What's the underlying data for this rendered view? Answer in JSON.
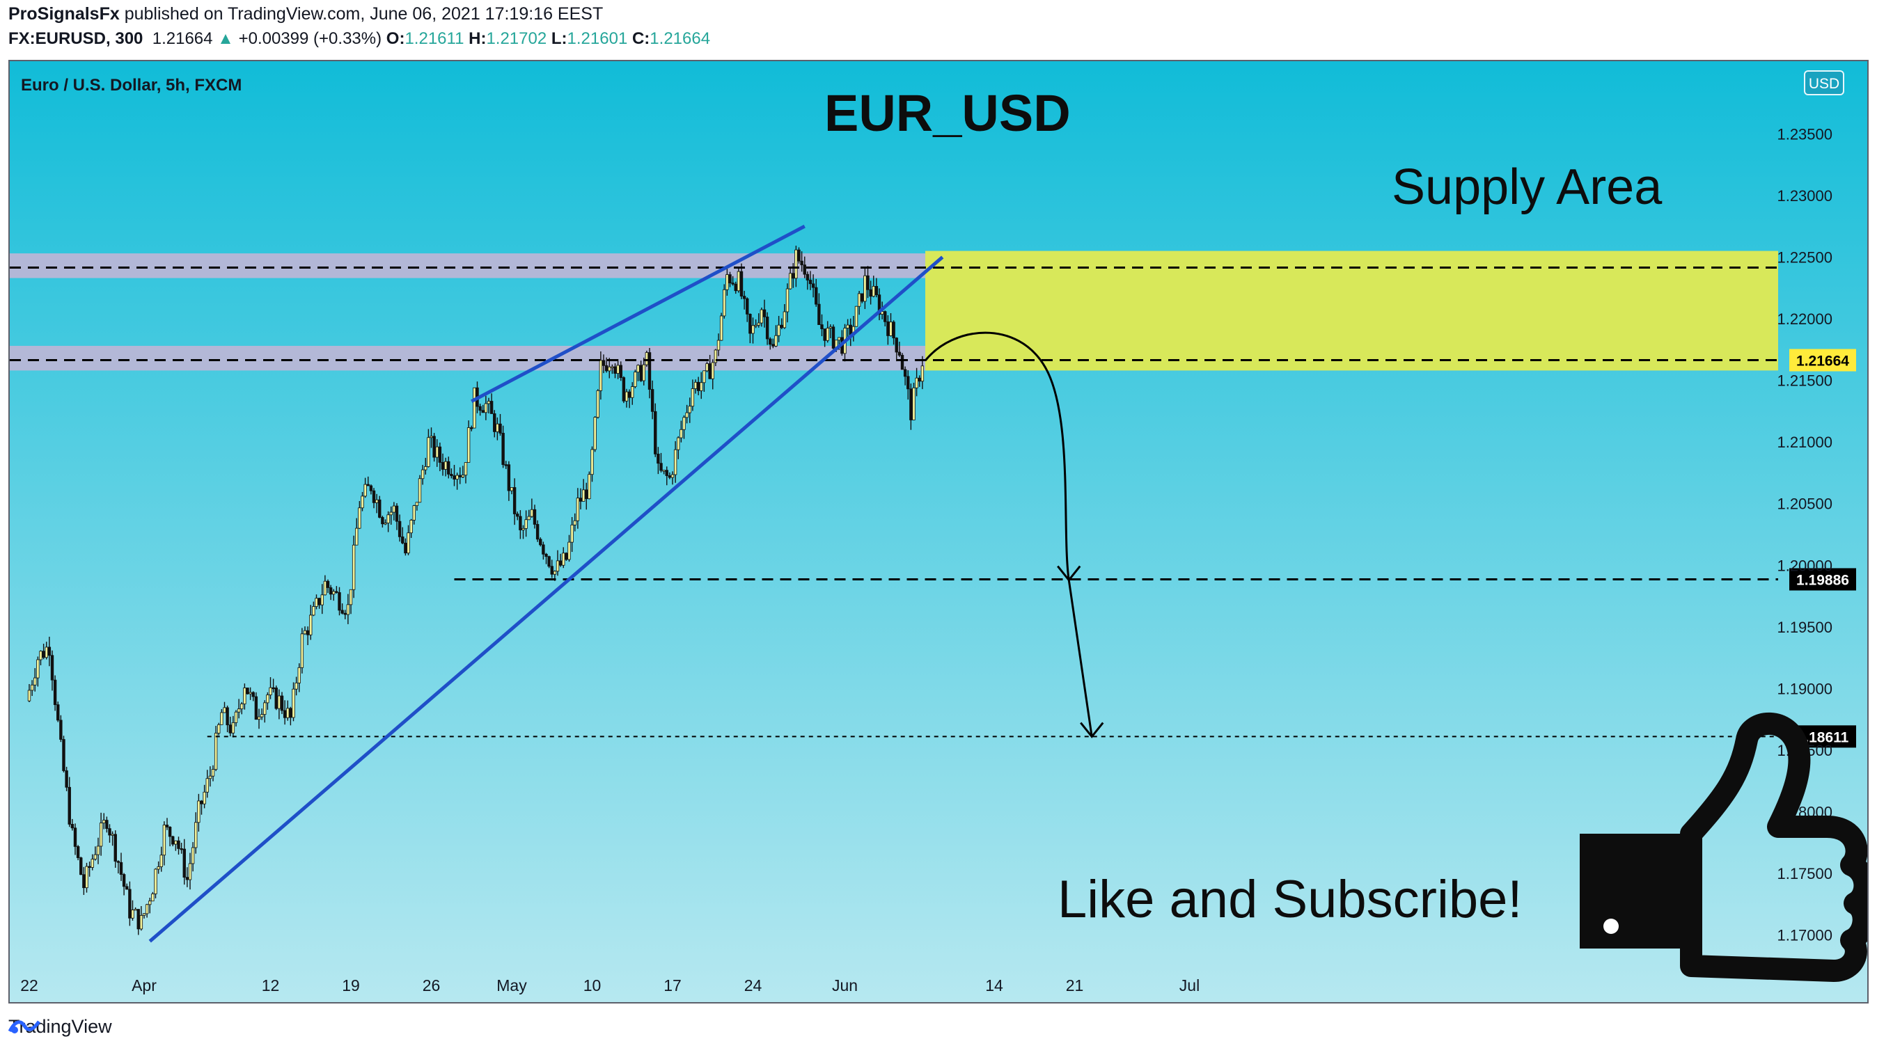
{
  "header": {
    "publisher": "ProSignalsFx",
    "published_text": " published on TradingView.com, June 06, 2021 17:19:16 EEST",
    "symbol": "FX:EURUSD, 300",
    "last": "1.21664",
    "change": "+0.00399 (+0.33%)",
    "o_label": "O:",
    "o": "1.21611",
    "h_label": "H:",
    "h": "1.21702",
    "l_label": "L:",
    "l": "1.21601",
    "c_label": "C:",
    "c": "1.21664"
  },
  "chart_legend": "Euro / U.S. Dollar, 5h, FXCM",
  "currency_badge": "USD",
  "footer": {
    "brand": "TradingView"
  },
  "colors": {
    "bg_top": "#11bcd8",
    "bg_bottom": "#b6e8f0",
    "band": "#b9b6d6",
    "supply": "#d8e85a",
    "trendline": "#1f4fc8",
    "candle_up": "#f2f29a",
    "candle_down": "#111111"
  },
  "chart_data": {
    "type": "candlestick",
    "title": "EUR_USD",
    "y_axis": {
      "min": 1.1675,
      "max": 1.2375,
      "ticks": [
        "1.23500",
        "1.23000",
        "1.22500",
        "1.22000",
        "1.21500",
        "1.21000",
        "1.20500",
        "1.20000",
        "1.19500",
        "1.19000",
        "1.18500",
        "1.18000",
        "1.17500",
        "1.17000"
      ]
    },
    "x_axis": {
      "ticks": [
        {
          "label": "22",
          "day": 0
        },
        {
          "label": "Apr",
          "day": 10
        },
        {
          "label": "12",
          "day": 21
        },
        {
          "label": "19",
          "day": 28
        },
        {
          "label": "26",
          "day": 35
        },
        {
          "label": "May",
          "day": 42
        },
        {
          "label": "10",
          "day": 49
        },
        {
          "label": "17",
          "day": 56
        },
        {
          "label": "24",
          "day": 63
        },
        {
          "label": "Jun",
          "day": 71
        },
        {
          "label": "14",
          "day": 84
        },
        {
          "label": "21",
          "day": 91
        },
        {
          "label": "Jul",
          "day": 101
        }
      ]
    },
    "price_path": [
      [
        0,
        1.189
      ],
      [
        1,
        1.1925
      ],
      [
        2,
        1.1935
      ],
      [
        3,
        1.185
      ],
      [
        4,
        1.178
      ],
      [
        5,
        1.174
      ],
      [
        6,
        1.177
      ],
      [
        7,
        1.1795
      ],
      [
        8,
        1.176
      ],
      [
        9,
        1.172
      ],
      [
        10,
        1.171
      ],
      [
        11,
        1.174
      ],
      [
        12,
        1.1785
      ],
      [
        13,
        1.178
      ],
      [
        14,
        1.1745
      ],
      [
        15,
        1.18
      ],
      [
        16,
        1.183
      ],
      [
        17,
        1.188
      ],
      [
        18,
        1.1865
      ],
      [
        19,
        1.1905
      ],
      [
        20,
        1.188
      ],
      [
        21,
        1.1895
      ],
      [
        22,
        1.189
      ],
      [
        23,
        1.1875
      ],
      [
        24,
        1.194
      ],
      [
        25,
        1.196
      ],
      [
        26,
        1.1985
      ],
      [
        27,
        1.1975
      ],
      [
        28,
        1.1965
      ],
      [
        29,
        1.205
      ],
      [
        30,
        1.2065
      ],
      [
        31,
        1.204
      ],
      [
        32,
        1.2045
      ],
      [
        33,
        1.201
      ],
      [
        34,
        1.2055
      ],
      [
        35,
        1.21
      ],
      [
        36,
        1.2085
      ],
      [
        37,
        1.208
      ],
      [
        38,
        1.2075
      ],
      [
        39,
        1.2135
      ],
      [
        40,
        1.213
      ],
      [
        41,
        1.211
      ],
      [
        42,
        1.2065
      ],
      [
        43,
        1.2025
      ],
      [
        44,
        1.204
      ],
      [
        45,
        1.2015
      ],
      [
        46,
        1.1995
      ],
      [
        47,
        1.2005
      ],
      [
        48,
        1.205
      ],
      [
        49,
        1.2065
      ],
      [
        50,
        1.216
      ],
      [
        51,
        1.217
      ],
      [
        52,
        1.214
      ],
      [
        53,
        1.215
      ],
      [
        54,
        1.2165
      ],
      [
        55,
        1.2075
      ],
      [
        56,
        1.207
      ],
      [
        57,
        1.211
      ],
      [
        58,
        1.2145
      ],
      [
        59,
        1.215
      ],
      [
        60,
        1.217
      ],
      [
        61,
        1.2235
      ],
      [
        62,
        1.223
      ],
      [
        63,
        1.2185
      ],
      [
        64,
        1.221
      ],
      [
        65,
        1.2175
      ],
      [
        66,
        1.221
      ],
      [
        67,
        1.225
      ],
      [
        68,
        1.224
      ],
      [
        69,
        1.2195
      ],
      [
        70,
        1.2185
      ],
      [
        71,
        1.218
      ],
      [
        72,
        1.2195
      ],
      [
        73,
        1.223
      ],
      [
        74,
        1.2215
      ],
      [
        75,
        1.2195
      ],
      [
        76,
        1.2175
      ],
      [
        77,
        1.2125
      ],
      [
        78,
        1.2166
      ]
    ],
    "horizontal_levels": [
      {
        "price": 1.22415,
        "style": "dashed"
      },
      {
        "price": 1.21664,
        "style": "dashed",
        "label": "1.21664",
        "label_bg": "#ffeb3b"
      },
      {
        "price": 1.19886,
        "style": "dashed",
        "label": "1.19886",
        "label_bg": "#000000"
      },
      {
        "price": 1.18611,
        "style": "dotted",
        "label": "1.18611",
        "label_bg": "#000000"
      }
    ],
    "zones": [
      {
        "name": "resistance-band",
        "from": 1.2233,
        "to": 1.2253
      },
      {
        "name": "support-band",
        "from": 1.2158,
        "to": 1.2178
      }
    ],
    "supply_area": {
      "label": "Supply Area",
      "day_from": 78,
      "price_from": 1.2158,
      "price_to": 1.2255
    },
    "trendlines": [
      {
        "day1": 10.5,
        "price1": 1.1695,
        "day2": 79.5,
        "price2": 1.225
      },
      {
        "day1": 38.5,
        "price1": 1.2133,
        "day2": 67.5,
        "price2": 1.2275
      }
    ],
    "projection": {
      "from": [
        78,
        1.2166
      ],
      "peak": [
        83,
        1.2183
      ],
      "mid": [
        90.5,
        1.1988
      ],
      "to": [
        92.5,
        1.1861
      ]
    },
    "annotation": "Like and Subscribe!"
  }
}
